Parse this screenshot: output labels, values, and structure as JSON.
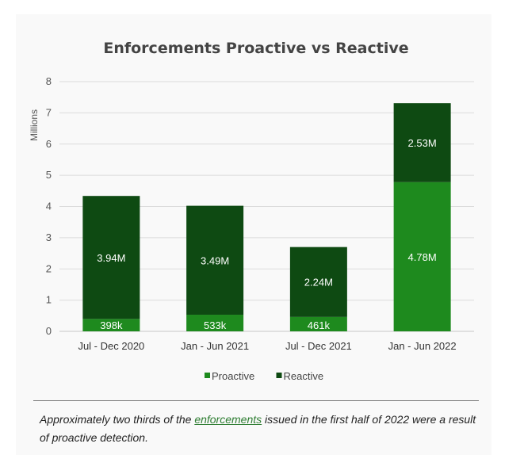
{
  "chart_data": {
    "type": "bar",
    "stacked": true,
    "title": "Enforcements Proactive vs Reactive",
    "xlabel": "",
    "ylabel": "Millions",
    "ylim": [
      0,
      8
    ],
    "yticks": [
      "0",
      "1",
      "2",
      "3",
      "4",
      "5",
      "6",
      "7",
      "8"
    ],
    "grid": true,
    "legend_position": "bottom",
    "categories": [
      "Jul - Dec 2020",
      "Jan - Jun 2021",
      "Jul - Dec 2021",
      "Jan - Jun 2022"
    ],
    "series": [
      {
        "name": "Proactive",
        "color": "#1e8a1e",
        "values": [
          0.398,
          0.533,
          0.461,
          4.78
        ],
        "labels": [
          "398k",
          "533k",
          "461k",
          "4.78M"
        ]
      },
      {
        "name": "Reactive",
        "color": "#0e4a12",
        "values": [
          3.94,
          3.49,
          2.24,
          2.53
        ],
        "labels": [
          "3.94M",
          "3.49M",
          "2.24M",
          "2.53M"
        ]
      }
    ]
  },
  "caption": {
    "before": "Approximately two thirds of the ",
    "link": "enforcements",
    "after": " issued in the first half of 2022 were a result of proactive detection."
  }
}
